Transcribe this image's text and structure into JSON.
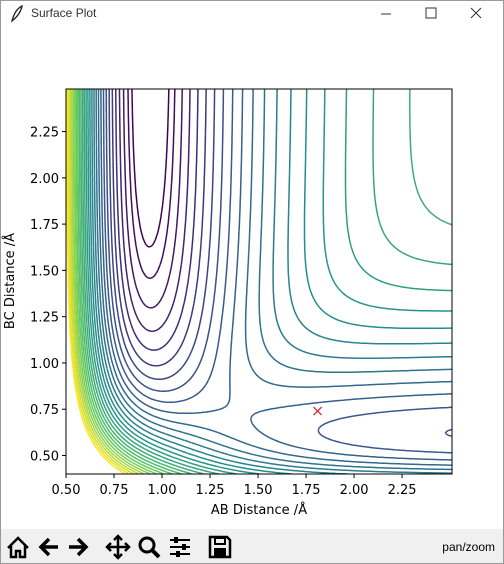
{
  "window": {
    "title": "Surface Plot"
  },
  "chart_data": {
    "type": "contour",
    "x_label": "AB Distance /Å",
    "y_label": "BC Distance /Å",
    "xlim": [
      0.5,
      2.51
    ],
    "ylim": [
      0.4,
      2.48
    ],
    "xticks": [
      {
        "value": 0.5,
        "label": "0.50"
      },
      {
        "value": 0.75,
        "label": "0.75"
      },
      {
        "value": 1.0,
        "label": "1.00"
      },
      {
        "value": 1.25,
        "label": "1.25"
      },
      {
        "value": 1.5,
        "label": "1.50"
      },
      {
        "value": 1.75,
        "label": "1.75"
      },
      {
        "value": 2.0,
        "label": "2.00"
      },
      {
        "value": 2.25,
        "label": "2.25"
      }
    ],
    "yticks": [
      {
        "value": 0.5,
        "label": "0.50"
      },
      {
        "value": 0.75,
        "label": "0.75"
      },
      {
        "value": 1.0,
        "label": "1.00"
      },
      {
        "value": 1.25,
        "label": "1.25"
      },
      {
        "value": 1.5,
        "label": "1.50"
      },
      {
        "value": 1.75,
        "label": "1.75"
      },
      {
        "value": 2.0,
        "label": "2.00"
      },
      {
        "value": 2.25,
        "label": "2.25"
      }
    ],
    "marker": {
      "x": 1.81,
      "y": 0.74,
      "color": "#d62728"
    }
  },
  "toolbar": {
    "status": "pan/zoom"
  }
}
